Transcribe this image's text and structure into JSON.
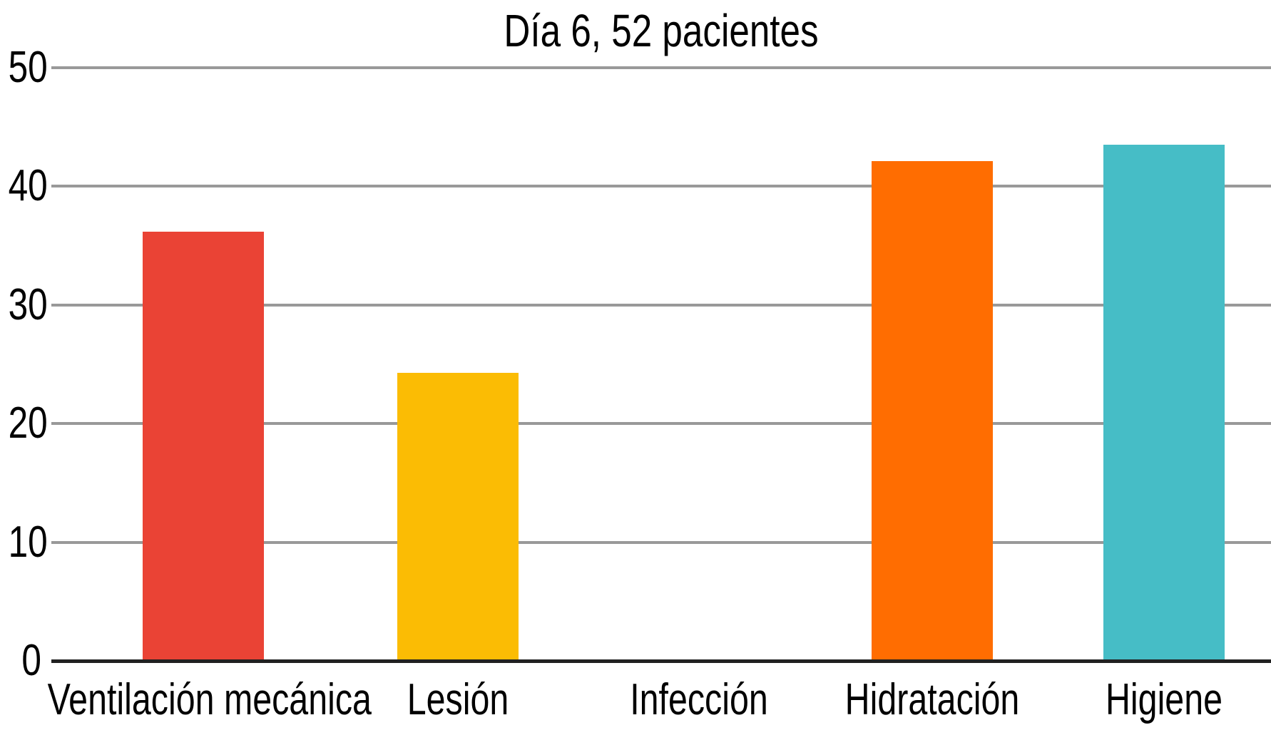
{
  "colors": {
    "background": "#ffffff",
    "gridline": "#999999",
    "axis_line": "#212121",
    "text": "#000000"
  },
  "chart_data": {
    "type": "bar",
    "title": "Día 6, 52 pacientes",
    "categories": [
      "Ventilación mecánica",
      "Lesión",
      "Infección",
      "Hidratación",
      "Higiene"
    ],
    "values": [
      36.2,
      24.3,
      0,
      42.1,
      43.5
    ],
    "bar_colors": [
      "#EA4335",
      "#FBBC04",
      "",
      "#FF6D01",
      "#46BDC6"
    ],
    "xlabel": "",
    "ylabel": "",
    "ylim": [
      0,
      50
    ],
    "yticks": [
      0,
      10,
      20,
      30,
      40,
      50
    ],
    "grid": "horizontal gridlines at each y tick, full plot width",
    "legend": "none",
    "notes": "Infección has no visible bar (value 0)"
  }
}
